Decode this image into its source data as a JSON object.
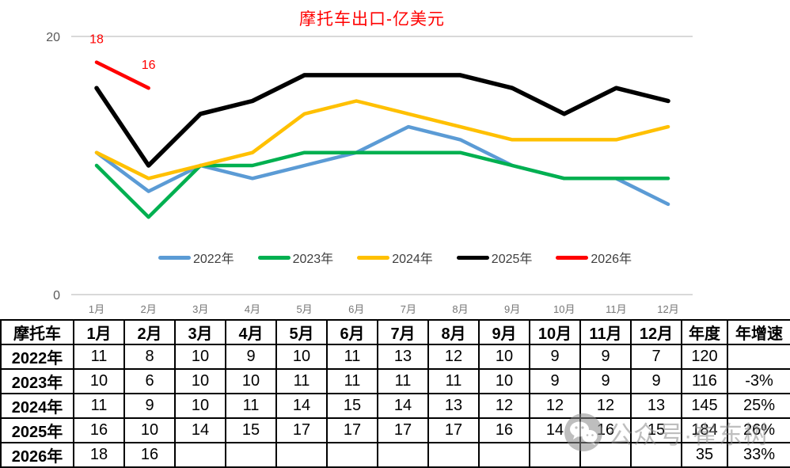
{
  "title": {
    "text": "摩托车出口-亿美元",
    "color": "#FF0000"
  },
  "chart_data": {
    "type": "line",
    "categories": [
      "1月",
      "2月",
      "3月",
      "4月",
      "5月",
      "6月",
      "7月",
      "8月",
      "9月",
      "10月",
      "11月",
      "12月"
    ],
    "series": [
      {
        "name": "2022年",
        "color": "#5B9BD5",
        "values": [
          11,
          8,
          10,
          9,
          10,
          11,
          13,
          12,
          10,
          9,
          9,
          7
        ],
        "labeled": false
      },
      {
        "name": "2023年",
        "color": "#00B050",
        "values": [
          10,
          6,
          10,
          10,
          11,
          11,
          11,
          11,
          10,
          9,
          9,
          9
        ],
        "labeled": false
      },
      {
        "name": "2024年",
        "color": "#FFC000",
        "values": [
          11,
          9,
          10,
          11,
          14,
          15,
          14,
          13,
          12,
          12,
          12,
          13
        ],
        "labeled": false
      },
      {
        "name": "2025年",
        "color": "#000000",
        "values": [
          16,
          10,
          14,
          15,
          17,
          17,
          17,
          17,
          16,
          14,
          16,
          15
        ],
        "labeled": false
      },
      {
        "name": "2026年",
        "color": "#FF0000",
        "values": [
          18,
          16,
          null,
          null,
          null,
          null,
          null,
          null,
          null,
          null,
          null,
          null
        ],
        "labeled": true
      }
    ],
    "title": "摩托车出口-亿美元",
    "xlabel": "",
    "ylabel": "",
    "ylim": [
      0,
      20
    ],
    "y_ticks": [
      0,
      20
    ],
    "grid": "horizontal lines at 0 and 20 only",
    "legend_position": "bottom",
    "axis_label_color": "#595959",
    "gridline_color": "#d9d9d9"
  },
  "table": {
    "corner_header": "摩托车",
    "month_headers": [
      "1月",
      "2月",
      "3月",
      "4月",
      "5月",
      "6月",
      "7月",
      "8月",
      "9月",
      "10月",
      "11月",
      "12月"
    ],
    "extra_headers": [
      "年度",
      "年增速"
    ],
    "rows": [
      {
        "label": "2022年",
        "months": [
          "11",
          "8",
          "10",
          "9",
          "10",
          "11",
          "13",
          "12",
          "10",
          "9",
          "9",
          "7"
        ],
        "total": "120",
        "growth": ""
      },
      {
        "label": "2023年",
        "months": [
          "10",
          "6",
          "10",
          "10",
          "11",
          "11",
          "11",
          "11",
          "10",
          "9",
          "9",
          "9"
        ],
        "total": "116",
        "growth": "-3%"
      },
      {
        "label": "2024年",
        "months": [
          "11",
          "9",
          "10",
          "11",
          "14",
          "15",
          "14",
          "13",
          "12",
          "12",
          "12",
          "13"
        ],
        "total": "145",
        "growth": "25%"
      },
      {
        "label": "2025年",
        "months": [
          "16",
          "10",
          "14",
          "15",
          "17",
          "17",
          "17",
          "17",
          "16",
          "14",
          "16",
          "15"
        ],
        "total": "184",
        "growth": "26%"
      },
      {
        "label": "2026年",
        "months": [
          "18",
          "16",
          "",
          "",
          "",
          "",
          "",
          "",
          "",
          "",
          "",
          ""
        ],
        "total": "35",
        "growth": "33%"
      }
    ]
  },
  "watermark": {
    "icon": "wechat-icon",
    "text": "公众号·崔东树"
  }
}
